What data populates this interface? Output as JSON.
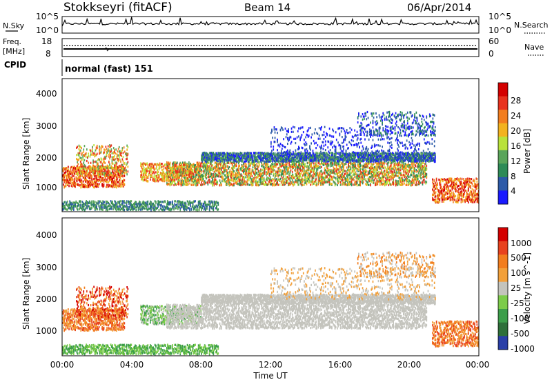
{
  "header": {
    "station": "Stokkseyri (fitACF)",
    "beam": "Beam 14",
    "date": "06/Apr/2014"
  },
  "noise_panel": {
    "left_label": "N.Sky",
    "left_ticks": [
      "10^5",
      "10^0"
    ],
    "right_label": "N.Search",
    "right_ticks": [
      "10^5",
      "10^0"
    ]
  },
  "freq_panel": {
    "left_label_1": "Freq.",
    "left_label_2": "[MHz]",
    "left_ticks": [
      "18",
      "8"
    ],
    "right_label": "Nave",
    "right_ticks": [
      "60",
      "0"
    ]
  },
  "cpid_panel": {
    "label": "CPID",
    "text": "normal (fast) 151"
  },
  "colors": {
    "power_scale": [
      "#1a1aff",
      "#2c5aa8",
      "#2e8b57",
      "#5aa55a",
      "#b9e23a",
      "#f2b21e",
      "#f27d1e",
      "#e8321e",
      "#d40000"
    ],
    "velocity_scale": [
      "#2a3fa8",
      "#2e6f3a",
      "#3c9e4a",
      "#7ccc4a",
      "#c4c4bd",
      "#f2a03a",
      "#f27d1e",
      "#e8421e",
      "#d40000"
    ]
  },
  "chart_data": [
    {
      "type": "heatmap",
      "panel": "power",
      "ylabel": "Slant Range [km]",
      "yticks": [
        "4000",
        "3000",
        "2000",
        "1000"
      ],
      "ylim": [
        200,
        4600
      ],
      "xticks": [
        "00:00",
        "04:00",
        "08:00",
        "12:00",
        "16:00",
        "20:00",
        "00:00"
      ],
      "xlim": [
        0,
        24
      ],
      "colorbar": {
        "label": "Power [dB]",
        "ticks": [
          "28",
          "24",
          "20",
          "16",
          "12",
          "8",
          "4"
        ],
        "range": [
          0,
          32
        ]
      }
    },
    {
      "type": "heatmap",
      "panel": "velocity",
      "ylabel": "Slant Range [km]",
      "yticks": [
        "4000",
        "3000",
        "2000",
        "1000"
      ],
      "ylim": [
        200,
        4600
      ],
      "xticks": [
        "00:00",
        "04:00",
        "08:00",
        "12:00",
        "16:00",
        "20:00",
        "00:00"
      ],
      "xlim": [
        0,
        24
      ],
      "xlabel": "Time UT",
      "colorbar": {
        "label": "Velocity [m s^-1]",
        "ticks": [
          "1000",
          "500",
          "100",
          "25",
          "-25",
          "-100",
          "-500",
          "-1000"
        ]
      }
    }
  ]
}
